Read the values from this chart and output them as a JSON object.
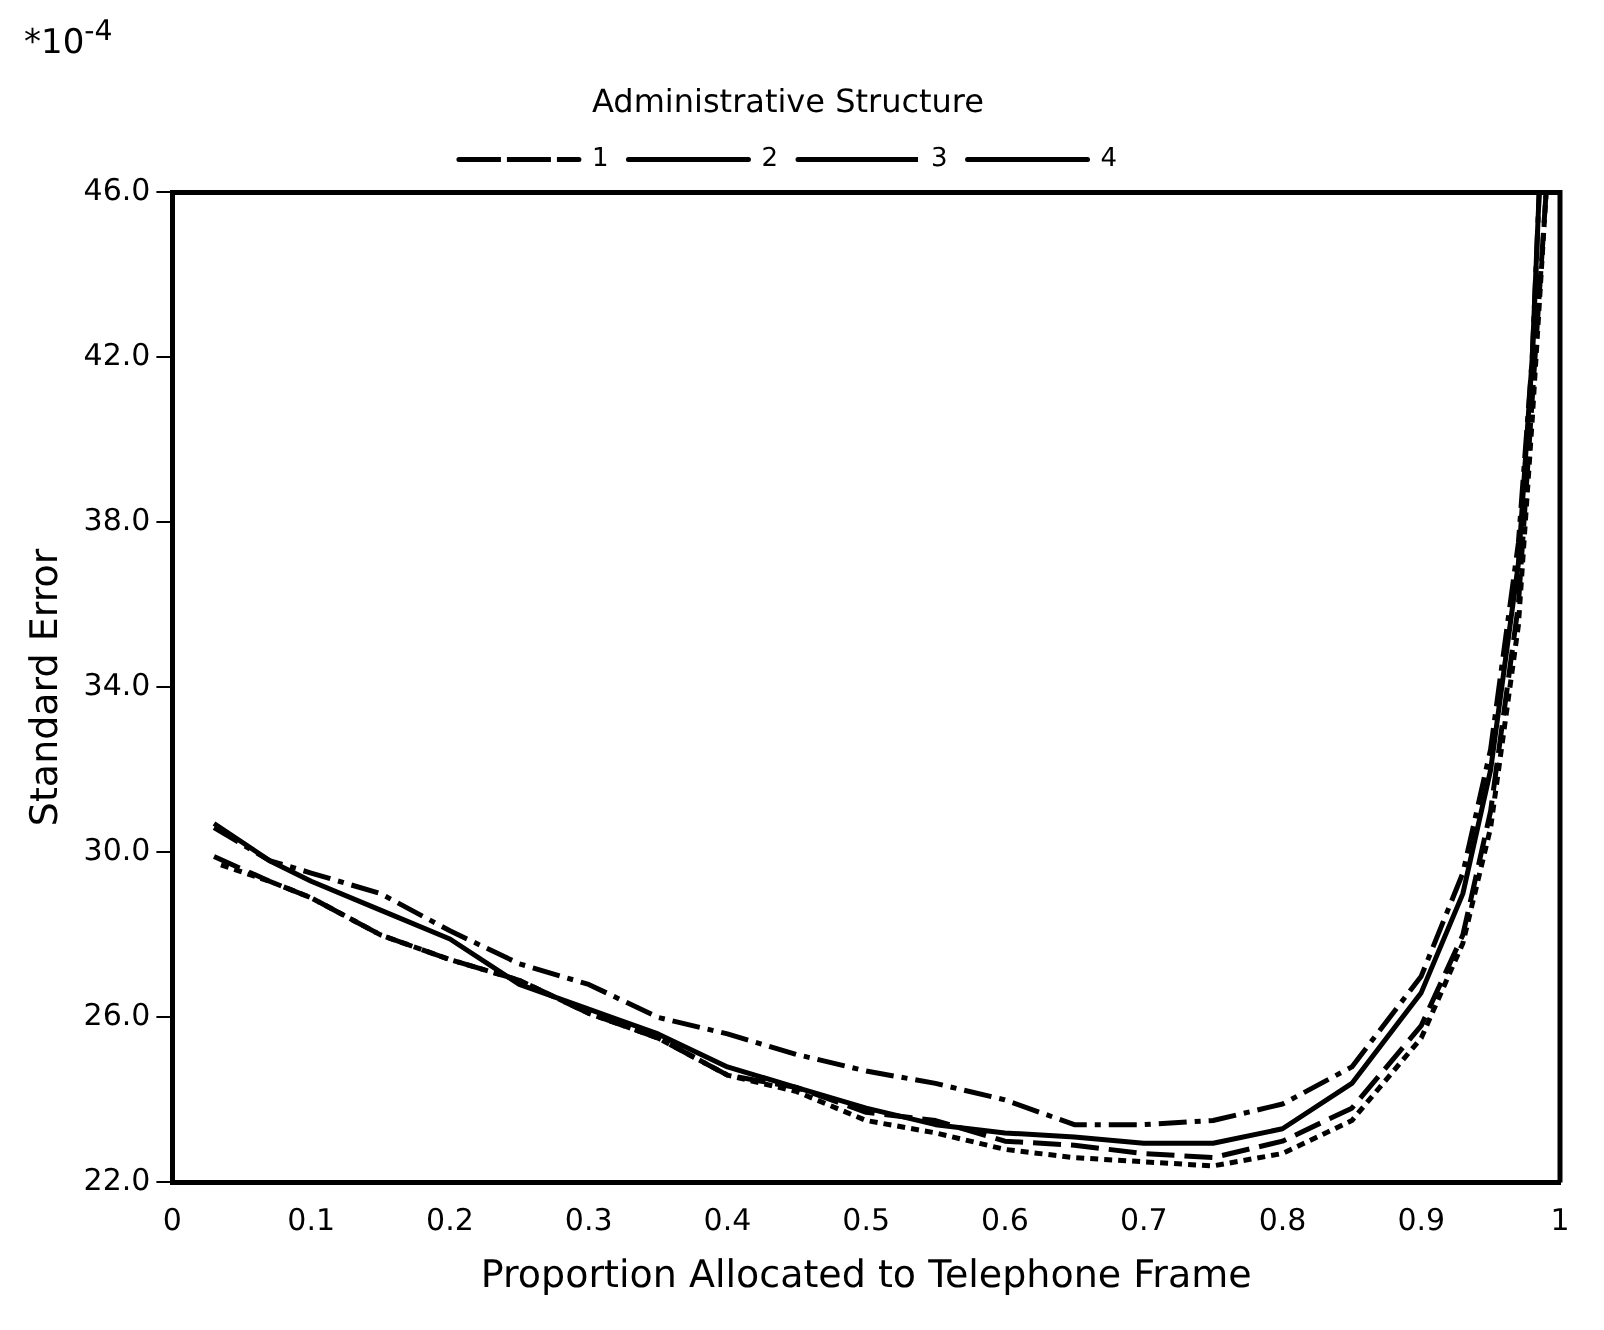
{
  "chart_data": {
    "type": "line",
    "xlabel": "Proportion Allocated to Telephone Frame",
    "ylabel": "Standard Error",
    "legend_title": "Administrative Structure",
    "legend": "top",
    "grid": false,
    "marker": "none",
    "annotations": [
      "*10$^{-4}$"
    ],
    "xlim": [
      0,
      1
    ],
    "ylim": [
      22,
      46
    ],
    "xticks": [
      0,
      0.1,
      0.2,
      0.3,
      0.4,
      0.5,
      0.6,
      0.7,
      0.8,
      0.9,
      1
    ],
    "yticks": [
      {
        "value": 22,
        "label": "22.0"
      },
      {
        "value": 26,
        "label": "26.0"
      },
      {
        "value": 30,
        "label": "30.0"
      },
      {
        "value": 34,
        "label": "34.0"
      },
      {
        "value": 38,
        "label": "38.0"
      },
      {
        "value": 42,
        "label": "42.0"
      },
      {
        "value": 46,
        "label": "46.0"
      }
    ],
    "series": [
      {
        "name": "1",
        "color": "#000000",
        "line_style": "dashdot",
        "x": [
          0.03,
          0.07,
          0.1,
          0.15,
          0.2,
          0.25,
          0.3,
          0.35,
          0.4,
          0.45,
          0.5,
          0.55,
          0.6,
          0.65,
          0.7,
          0.75,
          0.8,
          0.85,
          0.9,
          0.93,
          0.95,
          0.97,
          0.98,
          0.985
        ],
        "values": [
          30.6,
          29.8,
          29.5,
          29.0,
          28.1,
          27.3,
          26.8,
          26.0,
          25.6,
          25.1,
          24.7,
          24.4,
          24.0,
          23.4,
          23.4,
          23.5,
          23.9,
          24.8,
          27.0,
          29.5,
          32.5,
          37.5,
          42,
          46
        ]
      },
      {
        "name": "2",
        "color": "#000000",
        "line_style": "dashed",
        "x": [
          0.03,
          0.07,
          0.1,
          0.15,
          0.2,
          0.25,
          0.3,
          0.35,
          0.4,
          0.45,
          0.5,
          0.55,
          0.6,
          0.65,
          0.7,
          0.75,
          0.8,
          0.85,
          0.9,
          0.93,
          0.95,
          0.97,
          0.98,
          0.99
        ],
        "values": [
          29.9,
          29.3,
          28.9,
          28.0,
          27.4,
          26.9,
          26.1,
          25.5,
          24.6,
          24.3,
          23.7,
          23.5,
          23.0,
          22.9,
          22.7,
          22.6,
          23.0,
          23.8,
          25.8,
          28,
          31,
          36,
          41,
          46
        ]
      },
      {
        "name": "3",
        "color": "#000000",
        "line_style": "dotted",
        "x": [
          0.035,
          0.07,
          0.1,
          0.15,
          0.2,
          0.25,
          0.3,
          0.35,
          0.4,
          0.45,
          0.5,
          0.55,
          0.6,
          0.65,
          0.7,
          0.75,
          0.8,
          0.85,
          0.9,
          0.93,
          0.95,
          0.97,
          0.98,
          0.99
        ],
        "values": [
          29.7,
          29.3,
          28.9,
          28.0,
          27.4,
          26.9,
          26.1,
          25.5,
          24.6,
          24.2,
          23.5,
          23.2,
          22.8,
          22.6,
          22.5,
          22.4,
          22.7,
          23.5,
          25.5,
          27.8,
          30.6,
          35.5,
          40.5,
          46
        ]
      },
      {
        "name": "4",
        "color": "#000000",
        "line_style": "solid",
        "x": [
          0.03,
          0.07,
          0.1,
          0.15,
          0.2,
          0.25,
          0.3,
          0.35,
          0.4,
          0.45,
          0.5,
          0.55,
          0.6,
          0.65,
          0.7,
          0.75,
          0.8,
          0.85,
          0.9,
          0.93,
          0.95,
          0.97,
          0.98,
          0.985
        ],
        "values": [
          30.7,
          29.8,
          29.3,
          28.6,
          27.9,
          26.8,
          26.2,
          25.6,
          24.8,
          24.3,
          23.8,
          23.4,
          23.2,
          23.1,
          22.95,
          22.95,
          23.3,
          24.4,
          26.6,
          29,
          32,
          37,
          42,
          46
        ]
      }
    ]
  }
}
